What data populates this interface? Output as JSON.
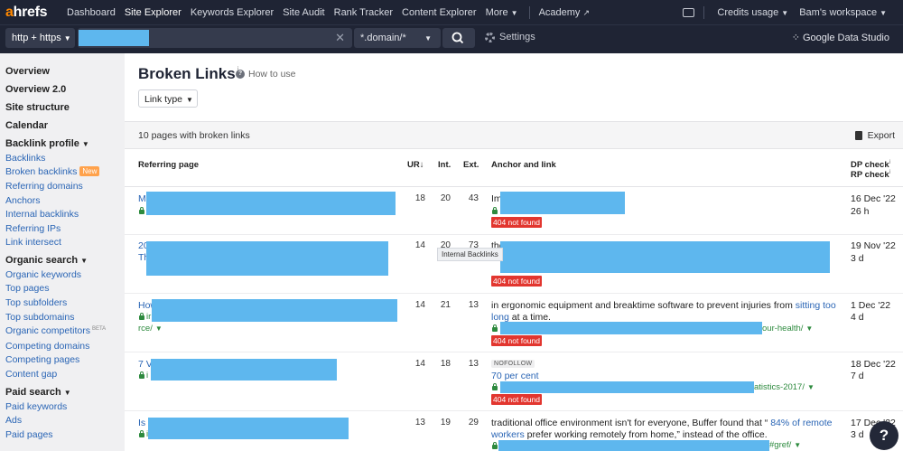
{
  "nav": {
    "logo_a": "a",
    "logo_rest": "hrefs",
    "links": [
      "Dashboard",
      "Site Explorer",
      "Keywords Explorer",
      "Site Audit",
      "Rank Tracker",
      "Content Explorer",
      "More"
    ],
    "academy": "Academy",
    "credits": "Credits usage",
    "workspace": "Bam's workspace"
  },
  "searchbar": {
    "protocol": "http + https",
    "mode": "*.domain/*",
    "settings": "Settings",
    "gds": "Google Data Studio"
  },
  "sidebar": {
    "overview": "Overview",
    "overview2": "Overview 2.0",
    "site_structure": "Site structure",
    "calendar": "Calendar",
    "backlink_profile": "Backlink profile",
    "backlinks": "Backlinks",
    "broken_backlinks": "Broken backlinks",
    "new_badge": "New",
    "referring_domains": "Referring domains",
    "anchors": "Anchors",
    "internal_backlinks": "Internal backlinks",
    "referring_ips": "Referring IPs",
    "link_intersect": "Link intersect",
    "organic_search": "Organic search",
    "organic_keywords": "Organic keywords",
    "top_pages": "Top pages",
    "top_subfolders": "Top subfolders",
    "top_subdomains": "Top subdomains",
    "organic_competitors": "Organic competitors",
    "beta": "BETA",
    "competing_domains": "Competing domains",
    "competing_pages": "Competing pages",
    "content_gap": "Content gap",
    "paid_search": "Paid search",
    "paid_keywords": "Paid keywords",
    "ads": "Ads",
    "paid_pages": "Paid pages"
  },
  "main": {
    "title": "Broken Links",
    "title_info": "i",
    "how_to": "How to use",
    "link_type": "Link type",
    "summary": "10 pages with broken links",
    "export": "Export"
  },
  "columns": {
    "referring_page": "Referring page",
    "ur": "UR",
    "int": "Int.",
    "ext": "Ext.",
    "anchor": "Anchor and link",
    "dp_check": "DP check",
    "rp_check": "RP check"
  },
  "tooltip": "Internal Backlinks",
  "rows": [
    {
      "ref_prefix": "M",
      "ur": "18",
      "int": "20",
      "ext": "43",
      "anchor_text": "Im",
      "status": "404 not found",
      "dp": "16 Dec '22",
      "rp": "26 h"
    },
    {
      "ref_prefix": "20",
      "ref_prefix2": "Th",
      "ur": "14",
      "int": "20",
      "ext": "73",
      "anchor_text": "the",
      "status": "404 not found",
      "dp": "19 Nov '22",
      "rp": "3 d"
    },
    {
      "ref_prefix": "How",
      "ref_prefix2": "ir",
      "ref_url_tail": "rce/",
      "ur": "14",
      "int": "21",
      "ext": "13",
      "anchor_text": "in ergonomic equipment and breaktime software to prevent injuries from ",
      "anchor_link1": "sitting too",
      "anchor_link2": "long",
      "anchor_text2": " at a time.",
      "link_tail": "our-health/",
      "status": "404 not found",
      "dp": "1 Dec '22",
      "rp": "4 d"
    },
    {
      "ref_prefix": "7 V",
      "ref_prefix2": "i",
      "ur": "14",
      "int": "18",
      "ext": "13",
      "nofollow": "NOFOLLOW",
      "anchor_link1": "70 per cent",
      "link_tail": "atistics-2017/",
      "status": "404 not found",
      "dp": "18 Dec '22",
      "rp": "7 d"
    },
    {
      "ref_prefix": "Is",
      "ref_prefix2": "i",
      "ur": "13",
      "int": "19",
      "ext": "29",
      "anchor_text": "traditional office environment isn't for everyone, Buffer found that “ ",
      "anchor_link1": "84% of remote",
      "anchor_link2": "workers",
      "anchor_text2": " prefer working remotely from home,” instead of the office.",
      "link_tail": "#gref/",
      "dp": "17 Dec '22",
      "rp": "3 d"
    }
  ],
  "help": "?",
  "colors": {
    "nav_bg": "#1f2434",
    "accent": "#ff8800",
    "link": "#2a65b5",
    "redaction": "#5eb7ee",
    "error": "#e2362f",
    "url_green": "#2d8a3e"
  }
}
